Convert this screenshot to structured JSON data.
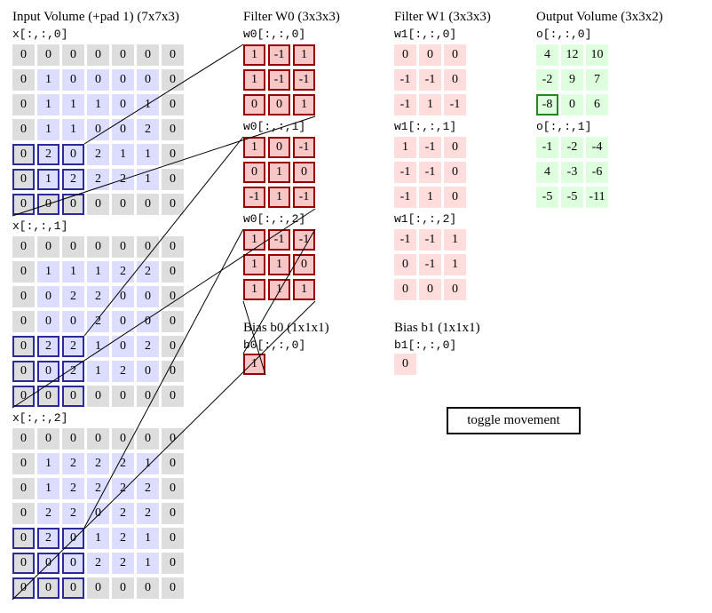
{
  "titles": {
    "input": "Input Volume (+pad 1) (7x7x3)",
    "w0": "Filter W0 (3x3x3)",
    "w1": "Filter W1 (3x3x3)",
    "output": "Output Volume (3x3x2)",
    "b0": "Bias b0 (1x1x1)",
    "b1": "Bias b1 (1x1x1)"
  },
  "input": {
    "labels": [
      "x[:,:,0]",
      "x[:,:,1]",
      "x[:,:,2]"
    ],
    "slices": [
      [
        [
          0,
          0,
          0,
          0,
          0,
          0,
          0
        ],
        [
          0,
          1,
          0,
          0,
          0,
          0,
          0
        ],
        [
          0,
          1,
          1,
          1,
          0,
          1,
          0
        ],
        [
          0,
          1,
          1,
          0,
          0,
          2,
          0
        ],
        [
          0,
          2,
          0,
          2,
          1,
          1,
          0
        ],
        [
          0,
          1,
          2,
          2,
          2,
          1,
          0
        ],
        [
          0,
          0,
          0,
          0,
          0,
          0,
          0
        ]
      ],
      [
        [
          0,
          0,
          0,
          0,
          0,
          0,
          0
        ],
        [
          0,
          1,
          1,
          1,
          2,
          2,
          0
        ],
        [
          0,
          0,
          2,
          2,
          0,
          0,
          0
        ],
        [
          0,
          0,
          0,
          2,
          0,
          0,
          0
        ],
        [
          0,
          2,
          2,
          1,
          0,
          2,
          0
        ],
        [
          0,
          0,
          2,
          1,
          2,
          0,
          0
        ],
        [
          0,
          0,
          0,
          0,
          0,
          0,
          0
        ]
      ],
      [
        [
          0,
          0,
          0,
          0,
          0,
          0,
          0
        ],
        [
          0,
          1,
          2,
          2,
          2,
          1,
          0
        ],
        [
          0,
          1,
          2,
          2,
          2,
          2,
          0
        ],
        [
          0,
          2,
          2,
          0,
          2,
          2,
          0
        ],
        [
          0,
          2,
          0,
          1,
          2,
          1,
          0
        ],
        [
          0,
          0,
          0,
          2,
          2,
          1,
          0
        ],
        [
          0,
          0,
          0,
          0,
          0,
          0,
          0
        ]
      ]
    ]
  },
  "w0": {
    "labels": [
      "w0[:,:,0]",
      "w0[:,:,1]",
      "w0[:,:,2]"
    ],
    "slices": [
      [
        [
          "1",
          "-1",
          "1"
        ],
        [
          "1",
          "-1",
          "-1"
        ],
        [
          "0",
          "0",
          "1"
        ]
      ],
      [
        [
          "1",
          "0",
          "-1"
        ],
        [
          "0",
          "1",
          "0"
        ],
        [
          "-1",
          "1",
          "-1"
        ]
      ],
      [
        [
          "1",
          "-1",
          "-1"
        ],
        [
          "1",
          "1",
          "0"
        ],
        [
          "1",
          "1",
          "1"
        ]
      ]
    ]
  },
  "w1": {
    "labels": [
      "w1[:,:,0]",
      "w1[:,:,1]",
      "w1[:,:,2]"
    ],
    "slices": [
      [
        [
          "0",
          "0",
          "0"
        ],
        [
          "-1",
          "-1",
          "0"
        ],
        [
          "-1",
          "1",
          "-1"
        ]
      ],
      [
        [
          "1",
          "-1",
          "0"
        ],
        [
          "-1",
          "-1",
          "0"
        ],
        [
          "-1",
          "1",
          "0"
        ]
      ],
      [
        [
          "-1",
          "-1",
          "1"
        ],
        [
          "0",
          "-1",
          "1"
        ],
        [
          "0",
          "0",
          "0"
        ]
      ]
    ]
  },
  "b0": {
    "label": "b0[:,:,0]",
    "value": "1"
  },
  "b1": {
    "label": "b1[:,:,0]",
    "value": "0"
  },
  "output": {
    "labels": [
      "o[:,:,0]",
      "o[:,:,1]"
    ],
    "slices": [
      [
        [
          "4",
          "12",
          "10"
        ],
        [
          "-2",
          "9",
          "7"
        ],
        [
          "-8",
          "0",
          "6"
        ]
      ],
      [
        [
          "-1",
          "-2",
          "-4"
        ],
        [
          "4",
          "-3",
          "-6"
        ],
        [
          "-5",
          "-5",
          "-11"
        ]
      ]
    ]
  },
  "highlight": {
    "input_row": 4,
    "input_col": 0,
    "output_row": 2,
    "output_col": 0
  },
  "toggle": {
    "label": "toggle movement"
  }
}
